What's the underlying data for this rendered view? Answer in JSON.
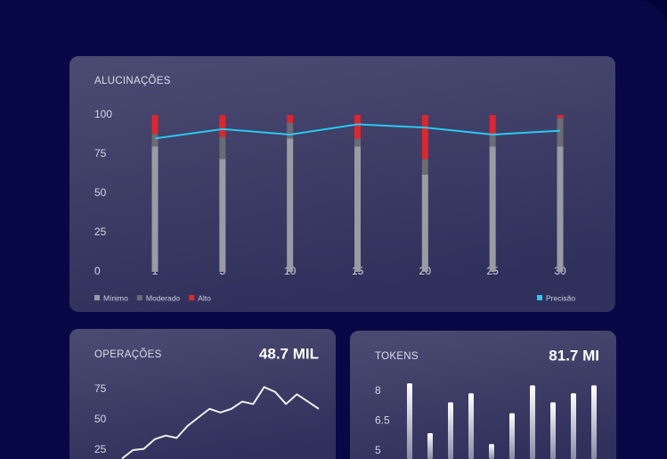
{
  "chart_data": [
    {
      "type": "bar",
      "title": "ALUCINAÇÕES",
      "stacked": true,
      "categories": [
        "1",
        "5",
        "10",
        "15",
        "20",
        "25",
        "30"
      ],
      "series": [
        {
          "name": "Mínimo",
          "color": "#9b9ba3",
          "values": [
            80,
            72,
            85,
            80,
            62,
            80,
            80
          ]
        },
        {
          "name": "Moderado",
          "color": "#6b6b73",
          "values": [
            8,
            14,
            10,
            5,
            10,
            8,
            18
          ]
        },
        {
          "name": "Alto",
          "color": "#e0262b",
          "values": [
            12,
            14,
            5,
            15,
            28,
            12,
            2
          ]
        },
        {
          "name": "Precisão",
          "color": "#2ac8f2",
          "type": "line",
          "values": [
            85,
            91,
            87.5,
            94,
            92,
            87.5,
            90
          ]
        }
      ],
      "ylim": [
        0,
        100
      ],
      "yticks": [
        0,
        25,
        50,
        75,
        100
      ]
    },
    {
      "type": "line",
      "title": "OPERAÇÕES",
      "headline": "48.7 MIL",
      "color": "#eeeeee",
      "values": [
        18,
        25,
        26,
        34,
        37,
        35,
        45,
        52,
        59,
        56,
        59,
        65,
        63,
        77,
        73,
        63,
        71,
        65,
        59
      ],
      "ylim": [
        18,
        85
      ],
      "yticks": [
        25,
        50,
        75
      ]
    },
    {
      "type": "bar",
      "title": "TOKENS",
      "headline": "81.7 MI",
      "values": [
        8.4,
        5.9,
        7.45,
        7.9,
        5.35,
        6.9,
        8.3,
        7.45,
        7.9,
        8.3
      ],
      "ylim": [
        4.6,
        9
      ],
      "yticks": [
        5,
        6.5,
        8
      ]
    }
  ]
}
